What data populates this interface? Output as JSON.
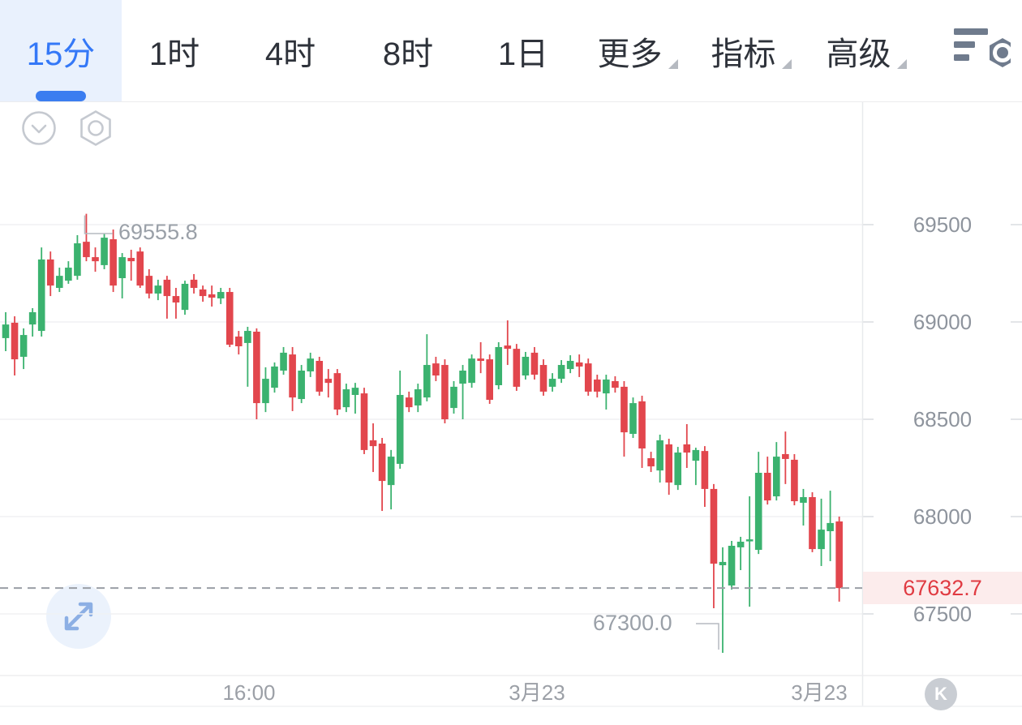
{
  "toolbar": {
    "tabs": [
      {
        "label": "15分",
        "active": true
      },
      {
        "label": "1时",
        "active": false
      },
      {
        "label": "4时",
        "active": false
      },
      {
        "label": "8时",
        "active": false
      },
      {
        "label": "1日",
        "active": false
      }
    ],
    "menus": [
      {
        "label": "更多"
      },
      {
        "label": "指标"
      },
      {
        "label": "高级"
      }
    ],
    "settings_icon": "indicator-list-settings"
  },
  "chart": {
    "y_axis_labels": [
      "69500",
      "69000",
      "68500",
      "68000",
      "67500"
    ],
    "x_axis_labels": [
      "16:00",
      "3月23",
      "3月23"
    ],
    "high_label": "69555.8",
    "low_label": "67300.0",
    "current_price": "67632.7",
    "k_badge": "K",
    "colors": {
      "up": "#3bb26f",
      "down": "#e2464d",
      "current_bg": "#fcecec",
      "current_text": "#e03b42",
      "accent_blue": "#3478f7",
      "grid": "#f0f1f3",
      "dashed_line": "#9a9ea5"
    }
  },
  "chart_data": {
    "type": "candlestick",
    "interval": "15分",
    "title": "",
    "y_ticks": [
      69500,
      69000,
      68500,
      68000,
      67500
    ],
    "x_ticks": [
      "16:00",
      "3月23",
      "3月23"
    ],
    "high": 69555.8,
    "low": 67300.0,
    "last": 67632.7,
    "high_index": 9,
    "low_index": 80,
    "price_axis_range": [
      67100,
      70130
    ],
    "candles": [
      [
        68917,
        69050,
        68850,
        68987
      ],
      [
        68996,
        69029,
        68725,
        68808
      ],
      [
        68821,
        68967,
        68758,
        68933
      ],
      [
        68987,
        69071,
        68925,
        69050
      ],
      [
        68954,
        69383,
        68925,
        69321
      ],
      [
        69321,
        69362,
        69133,
        69187
      ],
      [
        69175,
        69279,
        69154,
        69237
      ],
      [
        69212,
        69312,
        69196,
        69279
      ],
      [
        69237,
        69446,
        69217,
        69404
      ],
      [
        69412,
        69555.8,
        69312,
        69333
      ],
      [
        69333,
        69383,
        69258,
        69312
      ],
      [
        69292,
        69454,
        69271,
        69433
      ],
      [
        69425,
        69475,
        69154,
        69187
      ],
      [
        69225,
        69354,
        69121,
        69333
      ],
      [
        69329,
        69371,
        69212,
        69312
      ],
      [
        69362,
        69383,
        69175,
        69187
      ],
      [
        69237,
        69271,
        69121,
        69146
      ],
      [
        69146,
        69217,
        69112,
        69187
      ],
      [
        69217,
        69237,
        69017,
        69133
      ],
      [
        69133,
        69175,
        69017,
        69100
      ],
      [
        69062,
        69212,
        69037,
        69196
      ],
      [
        69217,
        69246,
        69146,
        69175
      ],
      [
        69167,
        69187,
        69104,
        69133
      ],
      [
        69142,
        69187,
        69079,
        69125
      ],
      [
        69121,
        69175,
        69092,
        69154
      ],
      [
        69154,
        69175,
        68871,
        68883
      ],
      [
        68925,
        68954,
        68833,
        68875
      ],
      [
        68892,
        68975,
        68667,
        68954
      ],
      [
        68950,
        68967,
        68500,
        68583
      ],
      [
        68583,
        68767,
        68537,
        68708
      ],
      [
        68662,
        68792,
        68637,
        68771
      ],
      [
        68750,
        68871,
        68729,
        68842
      ],
      [
        68833,
        68871,
        68542,
        68612
      ],
      [
        68604,
        68779,
        68583,
        68750
      ],
      [
        68746,
        68842,
        68717,
        68812
      ],
      [
        68800,
        68821,
        68621,
        68642
      ],
      [
        68708,
        68758,
        68612,
        68687
      ],
      [
        68737,
        68758,
        68521,
        68550
      ],
      [
        68562,
        68683,
        68537,
        68654
      ],
      [
        68625,
        68687,
        68529,
        68662
      ],
      [
        68633,
        68662,
        68321,
        68342
      ],
      [
        68392,
        68479,
        68229,
        68362
      ],
      [
        68375,
        68404,
        68029,
        68183
      ],
      [
        68162,
        68342,
        68037,
        68308
      ],
      [
        68271,
        68750,
        68246,
        68625
      ],
      [
        68612,
        68642,
        68537,
        68562
      ],
      [
        68571,
        68683,
        68537,
        68654
      ],
      [
        68612,
        68937,
        68592,
        68779
      ],
      [
        68787,
        68821,
        68696,
        68725
      ],
      [
        68779,
        68808,
        68479,
        68500
      ],
      [
        68558,
        68696,
        68529,
        68667
      ],
      [
        68683,
        68779,
        68500,
        68750
      ],
      [
        68687,
        68833,
        68662,
        68812
      ],
      [
        68812,
        68896,
        68737,
        68800
      ],
      [
        68808,
        68833,
        68579,
        68600
      ],
      [
        68675,
        68896,
        68654,
        68871
      ],
      [
        68879,
        69008,
        68779,
        68862
      ],
      [
        68862,
        68887,
        68646,
        68667
      ],
      [
        68725,
        68846,
        68704,
        68821
      ],
      [
        68842,
        68871,
        68704,
        68729
      ],
      [
        68779,
        68808,
        68621,
        68642
      ],
      [
        68667,
        68737,
        68642,
        68708
      ],
      [
        68708,
        68804,
        68687,
        68779
      ],
      [
        68758,
        68829,
        68737,
        68800
      ],
      [
        68792,
        68833,
        68717,
        68771
      ],
      [
        68787,
        68812,
        68621,
        68642
      ],
      [
        68704,
        68729,
        68612,
        68642
      ],
      [
        68633,
        68729,
        68550,
        68704
      ],
      [
        68696,
        68721,
        68637,
        68662
      ],
      [
        68667,
        68696,
        68308,
        68433
      ],
      [
        68425,
        68612,
        68404,
        68583
      ],
      [
        68592,
        68621,
        68250,
        68350
      ],
      [
        68300,
        68333,
        68229,
        68258
      ],
      [
        68237,
        68421,
        68175,
        68392
      ],
      [
        68371,
        68400,
        68112,
        68175
      ],
      [
        68162,
        68358,
        68137,
        68329
      ],
      [
        68371,
        68475,
        68250,
        68329
      ],
      [
        68287,
        68354,
        68162,
        68342
      ],
      [
        68337,
        68362,
        68050,
        68142
      ],
      [
        68142,
        68167,
        67529,
        67758
      ],
      [
        67750,
        67842,
        67300,
        67767
      ],
      [
        67646,
        67875,
        67625,
        67850
      ],
      [
        67842,
        67896,
        67725,
        67871
      ],
      [
        67875,
        68104,
        67537,
        67883
      ],
      [
        67829,
        68333,
        67808,
        68225
      ],
      [
        68225,
        68308,
        68062,
        68083
      ],
      [
        68104,
        68383,
        68083,
        68308
      ],
      [
        68321,
        68437,
        68167,
        68296
      ],
      [
        68292,
        68321,
        68058,
        68079
      ],
      [
        68071,
        68142,
        67954,
        68100
      ],
      [
        68100,
        68125,
        67817,
        67833
      ],
      [
        67833,
        68092,
        67746,
        67933
      ],
      [
        67925,
        68133,
        67771,
        67967
      ],
      [
        67975,
        68000,
        67563,
        67632.7
      ]
    ]
  }
}
